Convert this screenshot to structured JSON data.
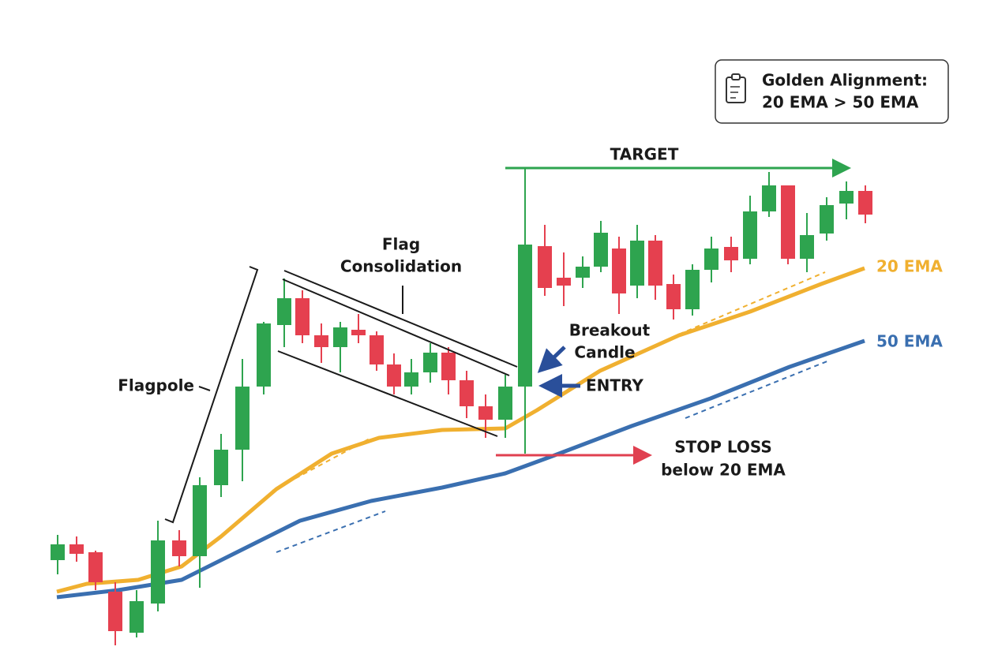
{
  "legend_box": {
    "title": "Golden Alignment:",
    "subtitle": "20 EMA > 50 EMA"
  },
  "annotations": {
    "target": "TARGET",
    "flag": "Flag",
    "consolidation": "Consolidation",
    "flagpole": "Flagpole",
    "breakout": "Breakout",
    "candle": "Candle",
    "entry": "ENTRY",
    "stop_loss": "STOP LOSS",
    "stop_loss_detail": "below 20 EMA"
  },
  "lines": {
    "ema20": "20 EMA",
    "ema50": "50 EMA"
  }
}
